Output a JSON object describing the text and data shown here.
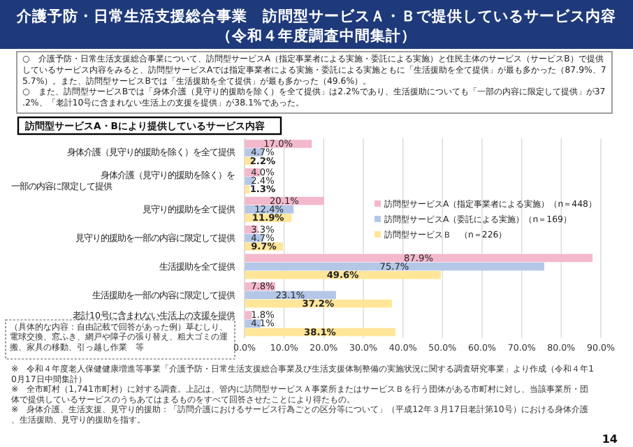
{
  "chart_data": {
    "type": "bar",
    "orientation": "horizontal",
    "title": "介護予防・日常生活支援総合事業　訪問型サービスＡ・Ｂで提供しているサービス内容",
    "subtitle": "（令和４年度調査中間集計）",
    "categories": [
      "身体介護（見守り的援助を除く）を全て提供",
      "身体介護（見守り的援助を除く）を一部の内容に限定して提供",
      "見守り的援助を全て提供",
      "見守り的援助を一部の内容に限定して提供",
      "生活援助を全て提供",
      "生活援助を一部の内容に限定して提供",
      "老計10号に含まれない生活上の支援を提供"
    ],
    "series": [
      {
        "name": "訪問型サービスA（指定事業者による実施）（n＝448）",
        "color": "#f4b8cc",
        "values": [
          17.0,
          4.0,
          20.1,
          3.3,
          87.9,
          7.8,
          1.8
        ],
        "value_labels": [
          "17.0%",
          "4.0%",
          "20.1%",
          "3.3%",
          "87.9%",
          "7.8%",
          "1.8%"
        ]
      },
      {
        "name": "訪問型サービスA（委託による実施）（n＝169）",
        "color": "#b4c7e7",
        "values": [
          4.7,
          2.4,
          12.4,
          4.7,
          75.7,
          23.1,
          4.1
        ],
        "value_labels": [
          "4.7%",
          "2.4%",
          "12.4%",
          "4.7%",
          "75.7%",
          "23.1%",
          "4.1%"
        ]
      },
      {
        "name": "訪問型サービスＢ　（n＝226）",
        "color": "#ffe699",
        "values": [
          2.2,
          1.3,
          11.9,
          9.7,
          49.6,
          37.2,
          38.1
        ],
        "value_labels": [
          "2.2%",
          "1.3%",
          "11.9%",
          "9.7%",
          "49.6%",
          "37.2%",
          "38.1%"
        ]
      }
    ],
    "xlim": [
      0,
      90
    ],
    "xticks": [
      {
        "value": 0,
        "label": "0.0%"
      },
      {
        "value": 10,
        "label": "10.0%"
      },
      {
        "value": 20,
        "label": "20.0%"
      },
      {
        "value": 30,
        "label": "30.0%"
      },
      {
        "value": 40,
        "label": "40.0%"
      },
      {
        "value": 50,
        "label": "50.0%"
      },
      {
        "value": 60,
        "label": "60.0%"
      },
      {
        "value": 70,
        "label": "70.0%"
      },
      {
        "value": 80,
        "label": "80.0%"
      },
      {
        "value": 90,
        "label": "90.0%"
      }
    ],
    "grid": "x",
    "legend": "right",
    "annotations": [
      "○　介護予防・日常生活支援総合事業について、訪問型サービスA（指定事業者による実施・委託による実施）と住民主体のサービス（サービスB）で提供しているサービス内容をみると、訪問型サービスAでは指定事業者による実施・委託による実施ともに「生活援助を全て提供」が最も多かった（87.9%、75.7%）。また、訪問型サービスBでは「生活援助を全て提供」が最も多かった（49.6%）。",
      "○　また、訪問型サービスBでは「身体介護（見守り的援助を除く）を全て提供」は2.2%であり、生活援助についても「一部の内容に限定して提供」が37.2%、「老計10号に含まれない生活上の支援を提供」が38.1%であった。",
      "訪問型サービスA・Bにより提供しているサービス内容",
      "（具体的な内容：自由記載で回答があった例）草むしり、電球交換、窓ふき、網戸や障子の張り替え、粗大ゴミの運搬、家具の移動、引っ越し作業　等",
      "※　令和４年度老人保健健康増進等事業「介護予防・日常生活支援総合事業及び生活支援体制整備の実施状況に関する調査研究事業」より作成（令和４年10月17日中間集計）",
      "※　全市町村（1,741市町村）に対する調査。上記は、管内に訪問型サービスＡ事業所またはサービスＢを行う団体がある市町村に対し、当該事業所・団体で提供しているサービスのうちあてはまるものをすべて回答させたことにより得たもの。",
      "※　身体介護、生活支援、見守り的援助：「訪問介護におけるサービス行為ごとの区分等について」（平成12年３月17日老計第10号）における身体介護、生活援助、見守り的援助を指す。",
      "14"
    ]
  }
}
